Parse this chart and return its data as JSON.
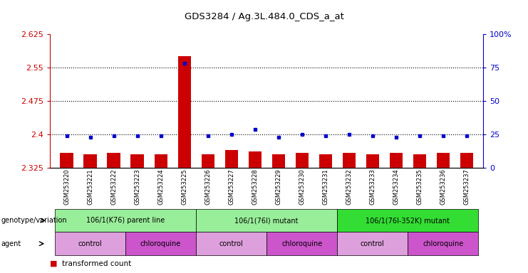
{
  "title": "GDS3284 / Ag.3L.484.0_CDS_a_at",
  "samples": [
    "GSM253220",
    "GSM253221",
    "GSM253222",
    "GSM253223",
    "GSM253224",
    "GSM253225",
    "GSM253226",
    "GSM253227",
    "GSM253228",
    "GSM253229",
    "GSM253230",
    "GSM253231",
    "GSM253232",
    "GSM253233",
    "GSM253234",
    "GSM253235",
    "GSM253236",
    "GSM253237"
  ],
  "transformed_count": [
    2.358,
    2.355,
    2.358,
    2.356,
    2.355,
    2.575,
    2.355,
    2.365,
    2.362,
    2.355,
    2.358,
    2.355,
    2.358,
    2.355,
    2.358,
    2.356,
    2.358,
    2.358
  ],
  "percentile_rank": [
    24,
    23,
    24,
    24,
    24,
    78,
    24,
    25,
    29,
    23,
    25,
    24,
    25,
    24,
    23,
    24,
    24,
    24
  ],
  "ylim_left": [
    2.325,
    2.625
  ],
  "ylim_right": [
    0,
    100
  ],
  "yticks_left": [
    2.325,
    2.4,
    2.475,
    2.55,
    2.625
  ],
  "yticks_left_labels": [
    "2.325",
    "2.4",
    "2.475",
    "2.55",
    "2.625"
  ],
  "yticks_right": [
    0,
    25,
    50,
    75,
    100
  ],
  "yticks_right_labels": [
    "0",
    "25",
    "50",
    "75",
    "100%"
  ],
  "bar_color": "#CC0000",
  "dot_color": "#0000CC",
  "bar_bottom": 2.325,
  "hline_vals": [
    2.4,
    2.475,
    2.55
  ],
  "genotype_groups": [
    {
      "label": "106/1(K76) parent line",
      "start": 0,
      "end": 5,
      "color": "#99EE99"
    },
    {
      "label": "106/1(76I) mutant",
      "start": 6,
      "end": 11,
      "color": "#99EE99"
    },
    {
      "label": "106/1(76I-352K) mutant",
      "start": 12,
      "end": 17,
      "color": "#33DD33"
    }
  ],
  "agent_groups": [
    {
      "label": "control",
      "start": 0,
      "end": 2,
      "color": "#DDA0DD"
    },
    {
      "label": "chloroquine",
      "start": 3,
      "end": 5,
      "color": "#CC55CC"
    },
    {
      "label": "control",
      "start": 6,
      "end": 8,
      "color": "#DDA0DD"
    },
    {
      "label": "chloroquine",
      "start": 9,
      "end": 11,
      "color": "#CC55CC"
    },
    {
      "label": "control",
      "start": 12,
      "end": 14,
      "color": "#DDA0DD"
    },
    {
      "label": "chloroquine",
      "start": 15,
      "end": 17,
      "color": "#CC55CC"
    }
  ],
  "left_axis_color": "#CC0000",
  "right_axis_color": "#0000CC",
  "background_color": "white"
}
